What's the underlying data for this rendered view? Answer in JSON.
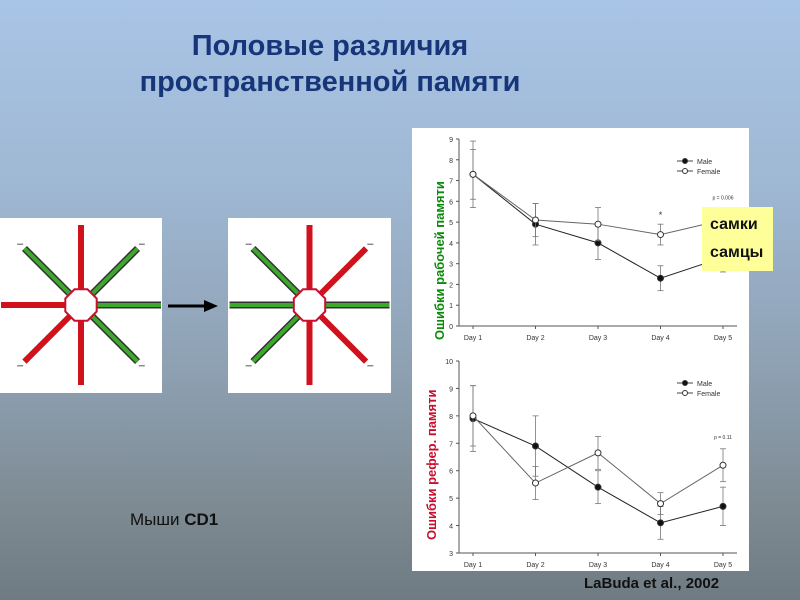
{
  "title_line1": "Половые различия",
  "title_line2": "пространственной памяти",
  "mice_label": "Мыши",
  "mice_strain": "CD1",
  "citation": "LaBuda et al., 2002",
  "legend": {
    "female": "самки",
    "male": "самцы"
  },
  "colors": {
    "wrong_arm": "#d0121d",
    "correct_arm": "#3ca82c",
    "title": "#17367a",
    "y_label_top": "#0a8a0a",
    "y_label_bottom": "#c8102e"
  },
  "maze": {
    "arms_before": [
      "red",
      "green",
      "green",
      "green",
      "red",
      "red",
      "red",
      "green"
    ],
    "arms_after": [
      "red",
      "red",
      "green",
      "red",
      "red",
      "green",
      "green",
      "green"
    ]
  },
  "chart_data": [
    {
      "type": "line",
      "ylabel": "Ошибки рабочей памяти",
      "ylim": [
        0,
        9
      ],
      "yticks": [
        0,
        1,
        2,
        3,
        4,
        5,
        6,
        7,
        8,
        9
      ],
      "categories": [
        "Day 1",
        "Day 2",
        "Day 3",
        "Day 4",
        "Day 5"
      ],
      "series": [
        {
          "name": "Male",
          "values": [
            7.3,
            4.9,
            4.0,
            2.3,
            3.3
          ],
          "err": [
            1.6,
            1.0,
            0.8,
            0.6,
            0.7
          ]
        },
        {
          "name": "Female",
          "values": [
            7.3,
            5.1,
            4.9,
            4.4,
            5.1
          ],
          "err": [
            1.2,
            0.8,
            0.8,
            0.5,
            0.5
          ]
        }
      ],
      "annotations": [
        {
          "text": "*",
          "x": "Day 4"
        },
        {
          "text": "p = 0.006",
          "x": "Day 5"
        }
      ]
    },
    {
      "type": "line",
      "ylabel": "Ошибки рефер. памяти",
      "ylim": [
        3,
        10
      ],
      "yticks": [
        3,
        4,
        5,
        6,
        7,
        8,
        9,
        10
      ],
      "categories": [
        "Day 1",
        "Day 2",
        "Day 3",
        "Day 4",
        "Day 5"
      ],
      "series": [
        {
          "name": "Male",
          "values": [
            7.9,
            6.9,
            5.4,
            4.1,
            4.7
          ],
          "err": [
            1.2,
            1.1,
            0.6,
            0.6,
            0.7
          ]
        },
        {
          "name": "Female",
          "values": [
            8.0,
            5.55,
            6.65,
            4.8,
            6.2
          ],
          "err": [
            1.1,
            0.6,
            0.6,
            0.4,
            0.6
          ]
        }
      ],
      "annotations": [
        {
          "text": "p = 0.11",
          "x": "Day 5"
        }
      ]
    }
  ]
}
